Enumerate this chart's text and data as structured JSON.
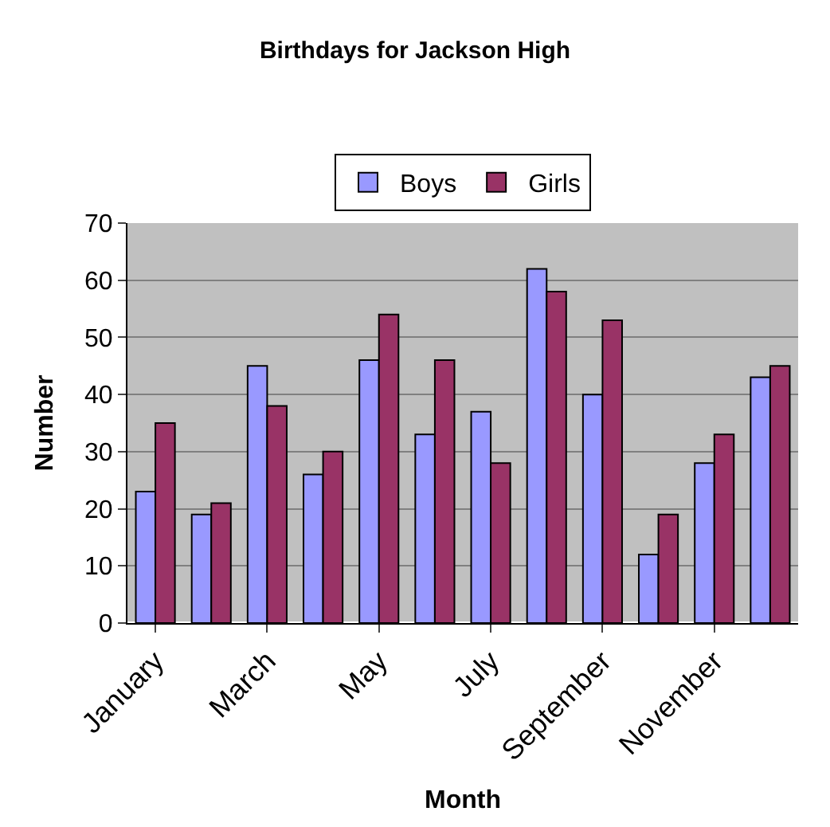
{
  "chart_data": {
    "type": "bar",
    "title": "Birthdays for Jackson High",
    "xlabel": "Month",
    "ylabel": "Number",
    "categories": [
      "January",
      null,
      "March",
      null,
      "May",
      null,
      "July",
      null,
      "September",
      null,
      "November",
      null
    ],
    "series": [
      {
        "name": "Boys",
        "color": "#9999ff",
        "values": [
          23,
          19,
          45,
          26,
          46,
          33,
          37,
          62,
          40,
          12,
          28,
          43
        ]
      },
      {
        "name": "Girls",
        "color": "#993366",
        "values": [
          35,
          21,
          38,
          30,
          54,
          46,
          28,
          58,
          53,
          19,
          33,
          45
        ]
      }
    ],
    "ylim": [
      0,
      70
    ],
    "yticks": [
      0,
      10,
      20,
      30,
      40,
      50,
      60,
      70
    ],
    "grid": "y",
    "legend": "top"
  }
}
